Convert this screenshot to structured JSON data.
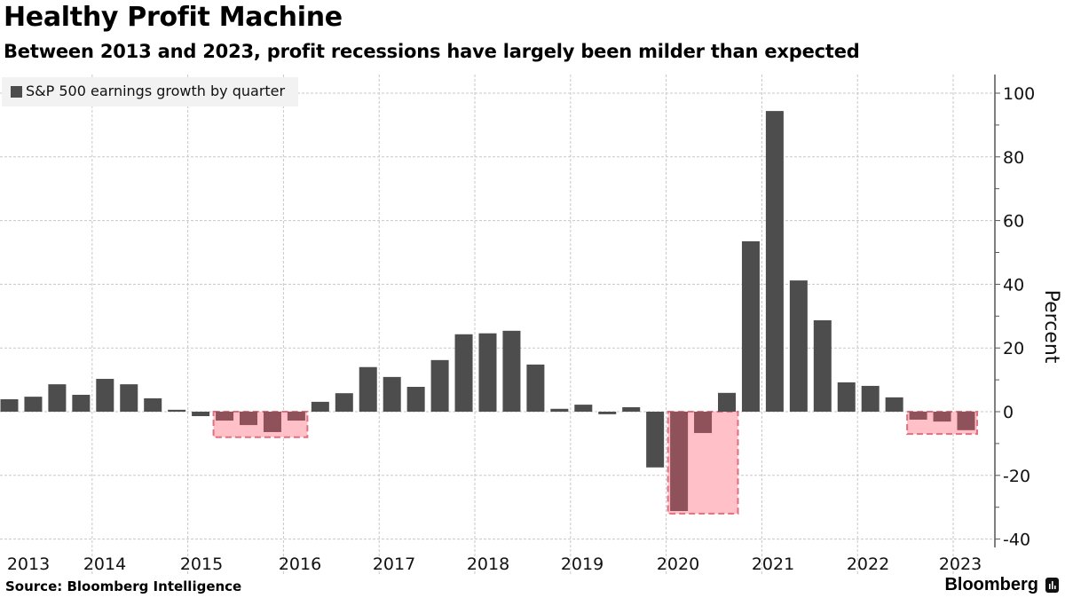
{
  "header": {
    "title": "Healthy Profit Machine",
    "subtitle": "Between 2013 and 2023, profit recessions have largely been milder than expected"
  },
  "footer": {
    "source": "Source:  Bloomberg Intelligence",
    "brand": "Bloomberg",
    "brand_icon": "bloomberg-chart-icon"
  },
  "colors": {
    "bar": "#4d4d4d",
    "bar_in_recession": "#8f525a",
    "recession_fill": "#ffc0c8",
    "recession_border": "#e07080",
    "grid": "#c8c8c8",
    "legend_bg": "#f2f2f2"
  },
  "chart_data": {
    "type": "bar",
    "title": "Healthy Profit Machine",
    "subtitle": "Between 2013 and 2023, profit recessions have largely been milder than expected",
    "xlabel": "",
    "ylabel": "Percent",
    "ylim": [
      -42,
      105
    ],
    "yticks": [
      -40,
      -20,
      0,
      20,
      40,
      60,
      80,
      100
    ],
    "grid": true,
    "legend": {
      "position": "top-left",
      "entries": [
        "S&P 500 earnings growth by quarter"
      ]
    },
    "year_labels": [
      "2013",
      "2014",
      "2015",
      "2016",
      "2017",
      "2018",
      "2019",
      "2020",
      "2021",
      "2022",
      "2023"
    ],
    "categories": [
      "2013Q1",
      "2013Q2",
      "2013Q3",
      "2013Q4",
      "2014Q1",
      "2014Q2",
      "2014Q3",
      "2014Q4",
      "2015Q1",
      "2015Q2",
      "2015Q3",
      "2015Q4",
      "2016Q1",
      "2016Q2",
      "2016Q3",
      "2016Q4",
      "2017Q1",
      "2017Q2",
      "2017Q3",
      "2017Q4",
      "2018Q1",
      "2018Q2",
      "2018Q3",
      "2018Q4",
      "2019Q1",
      "2019Q2",
      "2019Q3",
      "2019Q4",
      "2020Q1",
      "2020Q2",
      "2020Q3",
      "2020Q4",
      "2021Q1",
      "2021Q2",
      "2021Q3",
      "2021Q4",
      "2022Q1",
      "2022Q2",
      "2022Q3",
      "2022Q4",
      "2023Q1"
    ],
    "series": [
      {
        "name": "S&P 500 earnings growth by quarter",
        "values": [
          3.9,
          4.7,
          8.6,
          5.3,
          10.3,
          8.6,
          4.2,
          0.6,
          -1.4,
          -2.8,
          -4.2,
          -6.4,
          -2.8,
          3.1,
          5.8,
          14.0,
          10.9,
          7.8,
          16.2,
          24.3,
          24.6,
          25.4,
          14.8,
          0.9,
          2.2,
          -0.8,
          1.4,
          -17.5,
          -31.2,
          -6.7,
          5.9,
          53.5,
          94.4,
          41.2,
          28.7,
          9.2,
          8.1,
          4.5,
          -2.5,
          -3.1,
          -5.8
        ]
      }
    ],
    "annotations": [
      {
        "type": "recession-box",
        "from_index": 9,
        "to_index": 13,
        "ymin": -8,
        "ymax": 0
      },
      {
        "type": "recession-box",
        "from_index": 28,
        "to_index": 31,
        "ymin": -32,
        "ymax": 0
      },
      {
        "type": "recession-box",
        "from_index": 38,
        "to_index": 41,
        "ymin": -7,
        "ymax": 0
      }
    ]
  }
}
